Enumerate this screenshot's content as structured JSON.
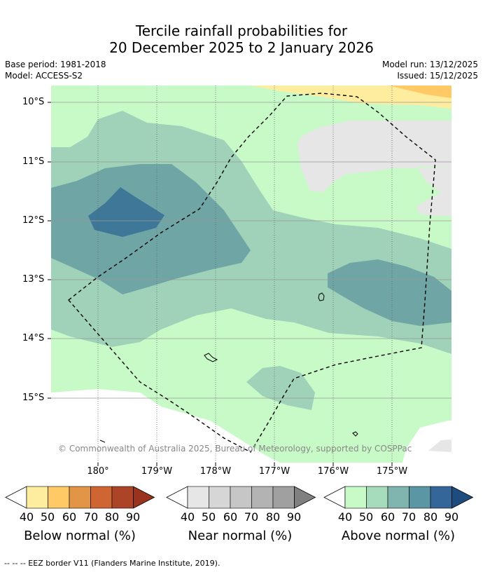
{
  "title": {
    "line1": "Tercile rainfall probabilities for",
    "line2": "20 December 2025 to 2 January 2026"
  },
  "meta": {
    "base_period": "Base period: 1981-2018",
    "model": "Model: ACCESS-S2",
    "model_run": "Model run: 13/12/2025",
    "issued": "Issued: 15/12/2025"
  },
  "map": {
    "lat_labels": [
      "10°S",
      "11°S",
      "12°S",
      "13°S",
      "14°S",
      "15°S"
    ],
    "lon_labels": [
      "180°",
      "179°W",
      "178°W",
      "177°W",
      "176°W",
      "175°W"
    ],
    "copyright": "© Commonwealth of Australia 2025, Bureau of Meteorology, supported by COSPPac",
    "colors": {
      "above_40": "#c8fac8",
      "above_50": "#9fd2b9",
      "above_60": "#6fa5a5",
      "above_70": "#3f7799",
      "below_40": "#ffed9f",
      "below_50": "#ffc966",
      "no_data": "#e6e6e6"
    }
  },
  "colorbars": {
    "ticks": [
      "40",
      "50",
      "60",
      "70",
      "80",
      "90"
    ],
    "below": {
      "label": "Below normal (%)",
      "colors": [
        "#ffed9f",
        "#ffc966",
        "#e29447",
        "#cf6533",
        "#ac4427",
        "#9a321d"
      ]
    },
    "near": {
      "label": "Near normal (%)",
      "colors": [
        "#e6e6e6",
        "#d6d6d6",
        "#c6c6c6",
        "#b3b3b3",
        "#a0a0a0",
        "#808080"
      ]
    },
    "above": {
      "label": "Above normal (%)",
      "colors": [
        "#c8fac8",
        "#a6dbbb",
        "#7fb5ae",
        "#5a96a3",
        "#356699",
        "#1e4c7e"
      ]
    }
  },
  "footer": "--  --  -- EEZ border V11 (Flanders Marine Institute, 2019)."
}
